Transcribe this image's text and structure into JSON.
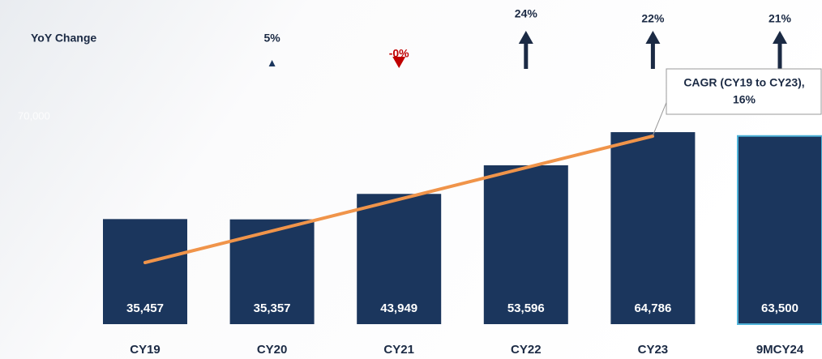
{
  "chart_data": {
    "type": "bar",
    "categories": [
      "CY19",
      "CY20",
      "CY21",
      "CY22",
      "CY23",
      "9MCY24"
    ],
    "values": [
      35457,
      35357,
      43949,
      53596,
      64786,
      63500
    ],
    "value_labels": [
      "35,457",
      "35,357",
      "43,949",
      "53,596",
      "64,786",
      "63,500"
    ],
    "color": "#1b365d",
    "ylim": [
      0,
      70000
    ],
    "yticks": [
      {
        "value": 70000,
        "label": "70,000"
      }
    ],
    "yoy_change": {
      "label": "YoY Change",
      "values": [
        5,
        0,
        24,
        22,
        21
      ],
      "value_labels": [
        "5%",
        "-0%",
        "24%",
        "22%",
        "21%"
      ]
    },
    "annotation": [
      "CAGR (CY19 to CY23),",
      "16%"
    ]
  }
}
